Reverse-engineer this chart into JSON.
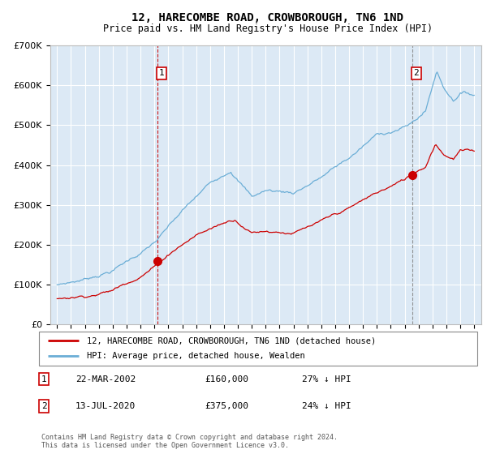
{
  "title": "12, HARECOMBE ROAD, CROWBOROUGH, TN6 1ND",
  "subtitle": "Price paid vs. HM Land Registry's House Price Index (HPI)",
  "hpi_color": "#6baed6",
  "price_color": "#cc0000",
  "vline1_color": "#cc0000",
  "vline2_color": "#888888",
  "background_color": "#dce9f5",
  "sale1_date_num": 2002.22,
  "sale1_price": 160000,
  "sale2_date_num": 2020.53,
  "sale2_price": 375000,
  "ylim": [
    0,
    700000
  ],
  "xlim": [
    1994.5,
    2025.5
  ],
  "yticks": [
    0,
    100000,
    200000,
    300000,
    400000,
    500000,
    600000,
    700000
  ],
  "xticks": [
    1995,
    1996,
    1997,
    1998,
    1999,
    2000,
    2001,
    2002,
    2003,
    2004,
    2005,
    2006,
    2007,
    2008,
    2009,
    2010,
    2011,
    2012,
    2013,
    2014,
    2015,
    2016,
    2017,
    2018,
    2019,
    2020,
    2021,
    2022,
    2023,
    2024,
    2025
  ],
  "legend_label_price": "12, HARECOMBE ROAD, CROWBOROUGH, TN6 1ND (detached house)",
  "legend_label_hpi": "HPI: Average price, detached house, Wealden",
  "annotation1_label": "1",
  "annotation1_date": "22-MAR-2002",
  "annotation1_price": "£160,000",
  "annotation1_hpi": "27% ↓ HPI",
  "annotation2_label": "2",
  "annotation2_date": "13-JUL-2020",
  "annotation2_price": "£375,000",
  "annotation2_hpi": "24% ↓ HPI",
  "footer": "Contains HM Land Registry data © Crown copyright and database right 2024.\nThis data is licensed under the Open Government Licence v3.0."
}
